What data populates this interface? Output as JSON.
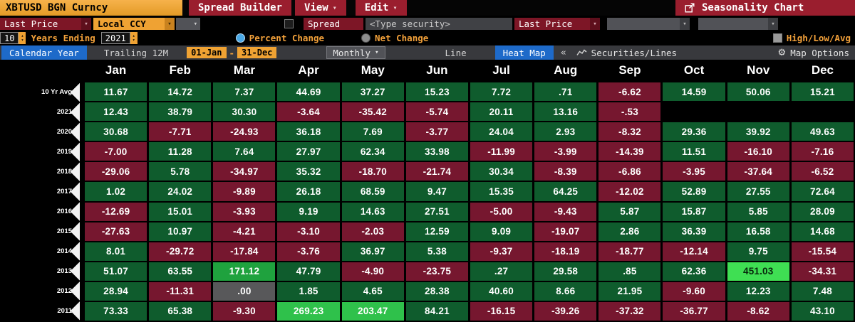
{
  "icons": {
    "caret_down": "▾",
    "spinner_up": "▴",
    "spinner_down": "▾",
    "collapse": "«",
    "gear": "⚙"
  },
  "theme": {
    "amber": "#efa233",
    "menu_red": "#9a1e2e",
    "field_red": "#7d1626",
    "blue": "#1e6ac9",
    "toolbar_gray": "#38393d"
  },
  "titlebar": {
    "ticker": "XBTUSD BGN Curncy",
    "menus": [
      {
        "label": "Spread Builder"
      },
      {
        "label": "View"
      },
      {
        "label": "Edit"
      }
    ],
    "title": "Seasonality Chart"
  },
  "row2": {
    "price_field": "Last Price",
    "currency_field": "Local CCY",
    "spread_label": "Spread",
    "security_placeholder": "<Type security>",
    "price_field2": "Last Price"
  },
  "row3": {
    "years_value": "10",
    "years_label": "Years Ending",
    "end_year": "2021",
    "percent_change_label": "Percent Change",
    "net_change_label": "Net Change",
    "high_low_avg_label": "High/Low/Avg"
  },
  "toolbar": {
    "calendar_year": "Calendar Year",
    "trailing_12m": "Trailing 12M",
    "date_from": "01-Jan",
    "date_sep": "-",
    "date_to": "31-Dec",
    "period": "Monthly",
    "line": "Line",
    "heat_map": "Heat Map",
    "securities_lines": "Securities/Lines",
    "map_options": "Map Options"
  },
  "chart_data": {
    "type": "heatmap",
    "title": "XBTUSD BGN Curncy — Seasonality Chart, monthly percent change",
    "value_unit": "percent",
    "columns": [
      "Jan",
      "Feb",
      "Mar",
      "Apr",
      "May",
      "Jun",
      "Jul",
      "Aug",
      "Sep",
      "Oct",
      "Nov",
      "Dec"
    ],
    "rows": [
      {
        "label": "10 Yr Avg",
        "values": [
          "11.67",
          "14.72",
          "7.37",
          "44.69",
          "37.27",
          "15.23",
          "7.72",
          ".71",
          "-6.62",
          "14.59",
          "50.06",
          "15.21"
        ]
      },
      {
        "label": "2021",
        "values": [
          "12.43",
          "38.79",
          "30.30",
          "-3.64",
          "-35.42",
          "-5.74",
          "20.11",
          "13.16",
          "-.53",
          null,
          null,
          null
        ]
      },
      {
        "label": "2020",
        "values": [
          "30.68",
          "-7.71",
          "-24.93",
          "36.18",
          "7.69",
          "-3.77",
          "24.04",
          "2.93",
          "-8.32",
          "29.36",
          "39.92",
          "49.63"
        ]
      },
      {
        "label": "2019",
        "values": [
          "-7.00",
          "11.28",
          "7.64",
          "27.97",
          "62.34",
          "33.98",
          "-11.99",
          "-3.99",
          "-14.39",
          "11.51",
          "-16.10",
          "-7.16"
        ]
      },
      {
        "label": "2018",
        "values": [
          "-29.06",
          "5.78",
          "-34.97",
          "35.32",
          "-18.70",
          "-21.74",
          "30.34",
          "-8.39",
          "-6.86",
          "-3.95",
          "-37.64",
          "-6.52"
        ]
      },
      {
        "label": "2017",
        "values": [
          "1.02",
          "24.02",
          "-9.89",
          "26.18",
          "68.59",
          "9.47",
          "15.35",
          "64.25",
          "-12.02",
          "52.89",
          "27.55",
          "72.64"
        ]
      },
      {
        "label": "2016",
        "values": [
          "-12.69",
          "15.01",
          "-3.93",
          "9.19",
          "14.63",
          "27.51",
          "-5.00",
          "-9.43",
          "5.87",
          "15.87",
          "5.85",
          "28.09"
        ]
      },
      {
        "label": "2015",
        "values": [
          "-27.63",
          "10.97",
          "-4.21",
          "-3.10",
          "-2.03",
          "12.59",
          "9.09",
          "-19.07",
          "2.86",
          "36.39",
          "16.58",
          "14.68"
        ]
      },
      {
        "label": "2014",
        "values": [
          "8.01",
          "-29.72",
          "-17.84",
          "-3.76",
          "36.97",
          "5.38",
          "-9.37",
          "-18.19",
          "-18.77",
          "-12.14",
          "9.75",
          "-15.54"
        ]
      },
      {
        "label": "2013",
        "values": [
          "51.07",
          "63.55",
          "171.12",
          "47.79",
          "-4.90",
          "-23.75",
          ".27",
          "29.58",
          ".85",
          "62.36",
          "451.03",
          "-34.31"
        ]
      },
      {
        "label": "2012",
        "values": [
          "28.94",
          "-11.31",
          ".00",
          "1.85",
          "4.65",
          "28.38",
          "40.60",
          "8.66",
          "21.95",
          "-9.60",
          "12.23",
          "7.48"
        ]
      },
      {
        "label": "2011",
        "values": [
          "73.33",
          "65.38",
          "-9.30",
          "269.23",
          "203.47",
          "84.21",
          "-16.15",
          "-39.26",
          "-37.32",
          "-36.77",
          "-8.62",
          "43.10"
        ]
      }
    ],
    "colors": {
      "positive": "#0f5c2d",
      "negative": "#76172f",
      "zero": "#58585a",
      "hot1": "#1fa23e",
      "hot2": "#2fc14b",
      "hot3": "#3fdf53",
      "hot3_text": "#07270c",
      "cell_text": "#ffffff"
    },
    "thresholds": {
      "hot1": 150,
      "hot2": 190,
      "hot3": 400
    }
  }
}
